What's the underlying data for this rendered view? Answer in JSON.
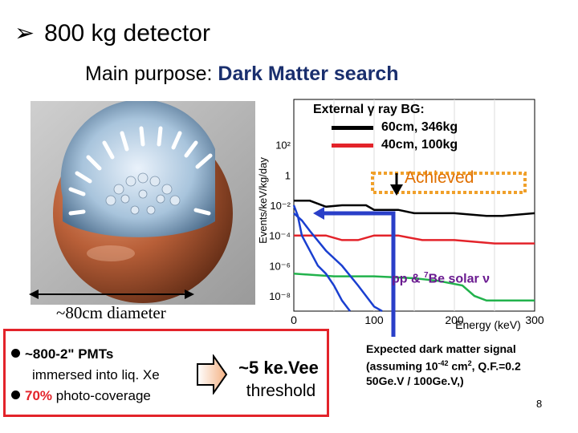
{
  "title": {
    "bullet_icon": "arrow-bullet-icon",
    "text": "800 kg detector"
  },
  "purpose": {
    "label": "Main purpose:",
    "value": "Dark Matter search"
  },
  "detector": {
    "image": "spherical-pmt-detector-render",
    "diameter_label": "~80cm diameter"
  },
  "legend": {
    "title": "External γ ray BG:",
    "rows": [
      {
        "label": "60cm, 346kg",
        "color": "#000000"
      },
      {
        "label": "40cm, 100kg",
        "color": "#e3232a"
      }
    ]
  },
  "annotations": {
    "achieved": "Achieved",
    "solar_prefix": "pp & ",
    "solar_sup": "7",
    "solar_suffix": "Be solar ν"
  },
  "pmt_box": {
    "line1_bold": "~800-2\" PMTs",
    "line2": "immersed into liq. Xe",
    "line3_red": "70%",
    "line3_rest": " photo-coverage",
    "arrow_icon": "right-arrow-icon",
    "threshold_value": "~5 ke.Vee",
    "threshold_label": "threshold"
  },
  "signal": {
    "line1": "Expected dark matter signal",
    "line2_a": "(assuming 10",
    "line2_sup1": "-42",
    "line2_b": " cm",
    "line2_sup2": "2",
    "line2_c": ", Q.F.=0.2",
    "line3": "50Ge.V / 100Ge.V,)"
  },
  "page_number": "8",
  "chart_data": {
    "type": "line",
    "xlabel": "Energy (keV)",
    "ylabel": "Events/keV/kg/day",
    "xlim": [
      0,
      300
    ],
    "y_scale": "log",
    "ylim": [
      1e-09,
      100000.0
    ],
    "x_ticks": [
      "0",
      "100",
      "200",
      "300"
    ],
    "y_ticks": [
      "10²",
      "1",
      "10⁻²",
      "10⁻⁴",
      "10⁻⁶",
      "10⁻⁸"
    ],
    "series": [
      {
        "name": "60cm, 346kg",
        "color": "#000000",
        "x": [
          0,
          20,
          40,
          60,
          90,
          100,
          130,
          150,
          200,
          240,
          260,
          300
        ],
        "y": [
          0.02,
          0.02,
          0.008,
          0.01,
          0.01,
          0.005,
          0.005,
          0.003,
          0.003,
          0.002,
          0.002,
          0.003
        ]
      },
      {
        "name": "40cm, 100kg",
        "color": "#e3232a",
        "x": [
          0,
          5,
          20,
          40,
          60,
          80,
          100,
          130,
          160,
          200,
          250,
          300
        ],
        "y": [
          0.0001,
          0.0001,
          0.0001,
          0.0001,
          5e-05,
          5e-05,
          0.0001,
          0.0001,
          5e-05,
          5e-05,
          3e-05,
          3e-05
        ]
      },
      {
        "name": "pp & 7Be solar ν",
        "color": "#22b24c",
        "x": [
          0,
          50,
          100,
          150,
          180,
          210,
          225,
          240,
          300
        ],
        "y": [
          3e-07,
          2e-07,
          2e-07,
          1.5e-07,
          1e-07,
          5e-08,
          1e-08,
          5e-09,
          5e-09
        ]
      },
      {
        "name": "",
        "color": "#1a3fd0",
        "x": [
          0,
          5,
          10,
          20,
          30,
          40,
          50,
          60,
          70
        ],
        "y": [
          0.01,
          0.002,
          0.0001,
          1e-05,
          1e-06,
          3e-07,
          5e-08,
          5e-09,
          1e-09
        ]
      },
      {
        "name": "",
        "color": "#1a3fd0",
        "x": [
          0,
          10,
          20,
          40,
          60,
          80,
          100,
          110
        ],
        "y": [
          0.003,
          0.001,
          0.0002,
          1e-05,
          1e-06,
          5e-08,
          2e-09,
          1e-09
        ]
      }
    ],
    "achieved_level": 0.008
  }
}
